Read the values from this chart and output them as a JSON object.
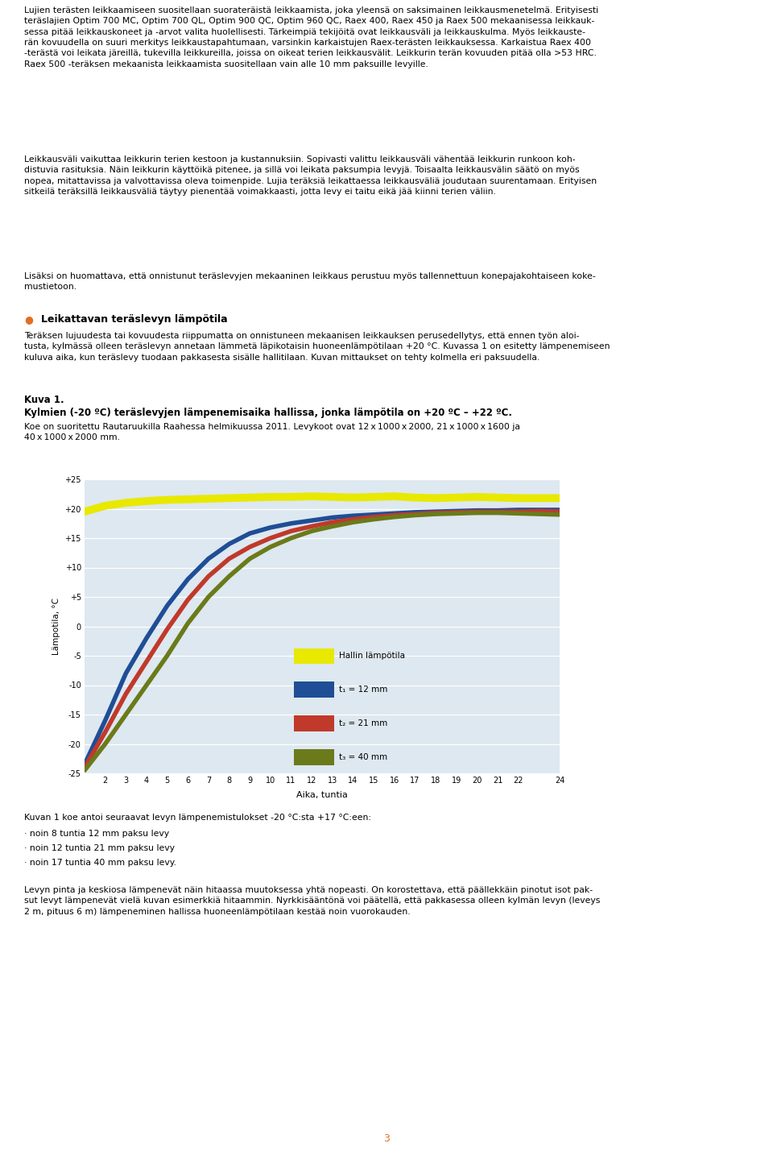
{
  "page_bg": "#ffffff",
  "chart_bg": "#dde8f0",
  "page_width": 9.6,
  "page_height": 14.4,
  "xlabel": "Aika, tuntia",
  "ylabel": "Lämpotila, °C",
  "ylim": [
    -25,
    25
  ],
  "xlim": [
    1,
    24
  ],
  "yticks": [
    -25,
    -20,
    -15,
    -10,
    -5,
    0,
    5,
    10,
    15,
    20,
    25
  ],
  "ytick_labels": [
    "-25",
    "-20",
    "-15",
    "-10",
    "-5",
    "0",
    "+5",
    "+10",
    "+15",
    "+20",
    "+25"
  ],
  "xticks": [
    2,
    3,
    4,
    5,
    6,
    7,
    8,
    9,
    10,
    11,
    12,
    13,
    14,
    15,
    16,
    17,
    18,
    19,
    20,
    21,
    22,
    24
  ],
  "lines": [
    {
      "label": "Hallin lämpötila",
      "color": "#e8e800",
      "linewidth": 7,
      "data_x": [
        1,
        2,
        3,
        4,
        5,
        6,
        7,
        8,
        9,
        10,
        11,
        12,
        13,
        14,
        15,
        16,
        17,
        18,
        19,
        20,
        21,
        22,
        23,
        24
      ],
      "data_y": [
        19.5,
        20.5,
        21.0,
        21.3,
        21.5,
        21.6,
        21.7,
        21.8,
        21.9,
        22.0,
        22.0,
        22.1,
        22.0,
        21.9,
        22.0,
        22.1,
        21.9,
        21.8,
        21.9,
        22.0,
        21.9,
        21.8,
        21.8,
        21.8
      ]
    },
    {
      "label": "t₁ = 12 mm",
      "color": "#1f4e96",
      "linewidth": 4,
      "data_x": [
        1,
        2,
        3,
        4,
        5,
        6,
        7,
        8,
        9,
        10,
        11,
        12,
        13,
        14,
        15,
        16,
        17,
        18,
        19,
        20,
        21,
        22,
        23,
        24
      ],
      "data_y": [
        -23.5,
        -16.0,
        -8.0,
        -2.0,
        3.5,
        8.0,
        11.5,
        14.0,
        15.8,
        16.8,
        17.5,
        18.0,
        18.5,
        18.8,
        19.0,
        19.2,
        19.4,
        19.5,
        19.6,
        19.7,
        19.7,
        19.8,
        19.8,
        19.8
      ]
    },
    {
      "label": "t₂ = 21 mm",
      "color": "#c0392b",
      "linewidth": 4,
      "data_x": [
        1,
        2,
        3,
        4,
        5,
        6,
        7,
        8,
        9,
        10,
        11,
        12,
        13,
        14,
        15,
        16,
        17,
        18,
        19,
        20,
        21,
        22,
        23,
        24
      ],
      "data_y": [
        -24.0,
        -18.0,
        -11.5,
        -6.0,
        -0.5,
        4.5,
        8.5,
        11.5,
        13.5,
        15.0,
        16.2,
        17.0,
        17.7,
        18.2,
        18.6,
        18.9,
        19.1,
        19.3,
        19.4,
        19.5,
        19.5,
        19.5,
        19.6,
        19.5
      ]
    },
    {
      "label": "t₃ = 40 mm",
      "color": "#6b7a1a",
      "linewidth": 4,
      "data_x": [
        1,
        2,
        3,
        4,
        5,
        6,
        7,
        8,
        9,
        10,
        11,
        12,
        13,
        14,
        15,
        16,
        17,
        18,
        19,
        20,
        21,
        22,
        23,
        24
      ],
      "data_y": [
        -24.5,
        -20.0,
        -15.0,
        -10.0,
        -5.0,
        0.5,
        5.0,
        8.5,
        11.5,
        13.5,
        15.0,
        16.2,
        17.0,
        17.7,
        18.2,
        18.6,
        18.9,
        19.1,
        19.2,
        19.3,
        19.3,
        19.2,
        19.1,
        19.0
      ]
    }
  ],
  "legend_entries": [
    {
      "label": "Hallin lämpötila",
      "color": "#e8e800"
    },
    {
      "label": "t₁ = 12 mm",
      "color": "#1f4e96"
    },
    {
      "label": "t₂ = 21 mm",
      "color": "#c0392b"
    },
    {
      "label": "t₃ = 40 mm",
      "color": "#6b7a1a"
    }
  ],
  "page_number": "3"
}
